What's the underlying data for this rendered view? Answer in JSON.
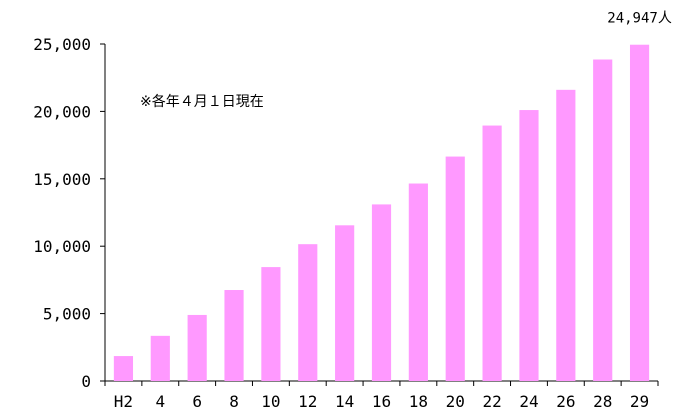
{
  "chart_data": {
    "type": "bar",
    "title": "",
    "xlabel": "",
    "ylabel": "",
    "note": "※各年４月１日現在",
    "categories": [
      "H2",
      "4",
      "6",
      "8",
      "10",
      "12",
      "14",
      "16",
      "18",
      "20",
      "22",
      "24",
      "26",
      "28",
      "29"
    ],
    "values": [
      1850,
      3350,
      4900,
      6750,
      8450,
      10150,
      11550,
      13100,
      14650,
      16650,
      18950,
      20100,
      21600,
      23850,
      24947
    ],
    "ylim": [
      0,
      25000
    ],
    "yticks": [
      0,
      5000,
      10000,
      15000,
      20000,
      25000
    ],
    "ytick_labels": [
      "0",
      "5,000",
      "10,000",
      "15,000",
      "20,000",
      "25,000"
    ],
    "data_labels": [
      {
        "index": 14,
        "text": "24,947人"
      }
    ],
    "grid": false,
    "legend": "none",
    "bar_color": "#ff99ff",
    "axis_color": "#000000"
  }
}
